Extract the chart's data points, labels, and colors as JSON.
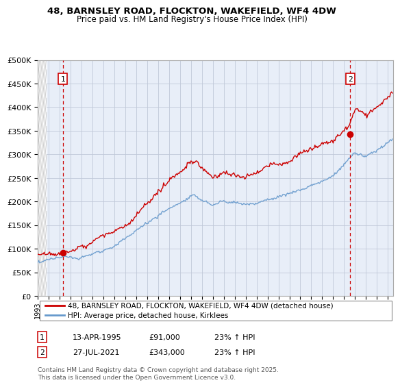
{
  "title1": "48, BARNSLEY ROAD, FLOCKTON, WAKEFIELD, WF4 4DW",
  "title2": "Price paid vs. HM Land Registry's House Price Index (HPI)",
  "ylabel_ticks": [
    "£0",
    "£50K",
    "£100K",
    "£150K",
    "£200K",
    "£250K",
    "£300K",
    "£350K",
    "£400K",
    "£450K",
    "£500K"
  ],
  "ytick_vals": [
    0,
    50000,
    100000,
    150000,
    200000,
    250000,
    300000,
    350000,
    400000,
    450000,
    500000
  ],
  "xlim_start": 1993.0,
  "xlim_end": 2025.5,
  "ylim": [
    0,
    500000
  ],
  "sale1_date": 1995.28,
  "sale1_price": 91000,
  "sale2_date": 2021.57,
  "sale2_price": 343000,
  "legend_line1": "48, BARNSLEY ROAD, FLOCKTON, WAKEFIELD, WF4 4DW (detached house)",
  "legend_line2": "HPI: Average price, detached house, Kirklees",
  "ann1_date": "13-APR-1995",
  "ann1_price": "£91,000",
  "ann1_hpi": "23% ↑ HPI",
  "ann2_date": "27-JUL-2021",
  "ann2_price": "£343,000",
  "ann2_hpi": "23% ↑ HPI",
  "footnote": "Contains HM Land Registry data © Crown copyright and database right 2025.\nThis data is licensed under the Open Government Licence v3.0.",
  "line_color_red": "#cc0000",
  "line_color_blue": "#6699cc",
  "chart_bg": "#e8eef8",
  "grid_color": "#c0c8d8",
  "hatch_color": "#c8c8c8"
}
